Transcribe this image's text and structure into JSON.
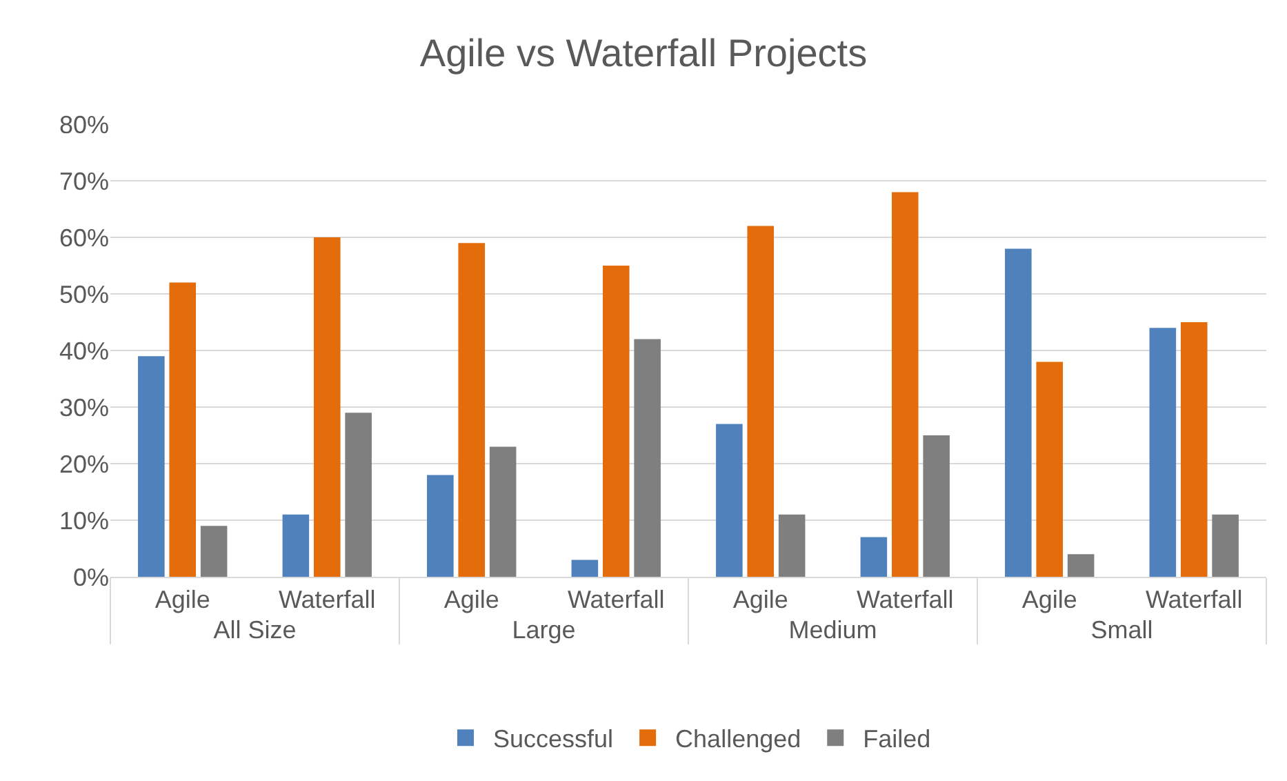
{
  "chart_data": {
    "type": "bar",
    "title": "Agile vs Waterfall Projects",
    "categories": [
      "Agile",
      "Waterfall",
      "Agile",
      "Waterfall",
      "Agile",
      "Waterfall",
      "Agile",
      "Waterfall"
    ],
    "annotations": [
      "All Size",
      "Large",
      "Medium",
      "Small"
    ],
    "series": [
      {
        "name": "Successful",
        "color": "#4f81bd",
        "values": [
          39,
          11,
          18,
          3,
          27,
          7,
          58,
          44
        ]
      },
      {
        "name": "Challenged",
        "color": "#e46c0a",
        "values": [
          52,
          60,
          59,
          55,
          62,
          68,
          38,
          45
        ]
      },
      {
        "name": "Failed",
        "color": "#7f7f7f",
        "values": [
          9,
          29,
          23,
          42,
          11,
          25,
          4,
          11
        ]
      }
    ],
    "ylim": [
      0,
      80
    ],
    "yticks": [
      {
        "value": 0,
        "label": "0%"
      },
      {
        "value": 10,
        "label": "10%"
      },
      {
        "value": 20,
        "label": "20%"
      },
      {
        "value": 30,
        "label": "30%"
      },
      {
        "value": 40,
        "label": "40%"
      },
      {
        "value": 50,
        "label": "50%"
      },
      {
        "value": 60,
        "label": "60%"
      },
      {
        "value": 70,
        "label": "70%"
      },
      {
        "value": 80,
        "label": "80%"
      }
    ],
    "grid": "y",
    "legend": "bottom"
  }
}
